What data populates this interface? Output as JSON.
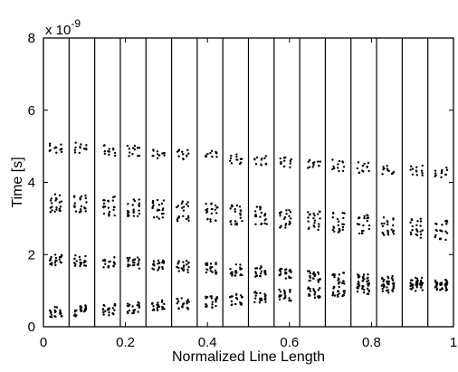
{
  "chart_data": {
    "type": "scatter",
    "title": "",
    "xlabel": "Normalized Line Length",
    "ylabel": "Time [s]",
    "y_multiplier": "x 10",
    "y_multiplier_exponent": "-9",
    "xlim": [
      0,
      1
    ],
    "ylim": [
      0,
      8
    ],
    "xticks": [
      0,
      0.2,
      0.4,
      0.6,
      0.8,
      1
    ],
    "xtick_labels": [
      "0",
      "0.2",
      "0.4",
      "0.6",
      "0.8",
      "1"
    ],
    "yticks": [
      0,
      2,
      4,
      6,
      8
    ],
    "ytick_labels": [
      "0",
      "2",
      "4",
      "6",
      "8"
    ],
    "grid": false,
    "legend": "none",
    "separator_lines_x": [
      0.0625,
      0.125,
      0.1875,
      0.25,
      0.3125,
      0.375,
      0.4375,
      0.5,
      0.5625,
      0.625,
      0.6875,
      0.75,
      0.8125,
      0.875,
      0.9375
    ],
    "series": [
      {
        "values": [
          {
            "group_x": 0.03,
            "band": 1,
            "y": 0.4
          },
          {
            "group_x": 0.03,
            "band": 2,
            "y": 1.85
          },
          {
            "group_x": 0.03,
            "band": 3,
            "y": 3.45
          },
          {
            "group_x": 0.03,
            "band": 4,
            "y": 4.98
          },
          {
            "group_x": 0.09,
            "band": 1,
            "y": 0.44
          },
          {
            "group_x": 0.09,
            "band": 2,
            "y": 1.83
          },
          {
            "group_x": 0.09,
            "band": 3,
            "y": 3.4
          },
          {
            "group_x": 0.09,
            "band": 4,
            "y": 4.95
          },
          {
            "group_x": 0.16,
            "band": 1,
            "y": 0.48
          },
          {
            "group_x": 0.16,
            "band": 2,
            "y": 1.8
          },
          {
            "group_x": 0.16,
            "band": 3,
            "y": 3.35
          },
          {
            "group_x": 0.16,
            "band": 4,
            "y": 4.9
          },
          {
            "group_x": 0.22,
            "band": 1,
            "y": 0.53
          },
          {
            "group_x": 0.22,
            "band": 2,
            "y": 1.76
          },
          {
            "group_x": 0.22,
            "band": 3,
            "y": 3.3
          },
          {
            "group_x": 0.22,
            "band": 4,
            "y": 4.86
          },
          {
            "group_x": 0.28,
            "band": 1,
            "y": 0.58
          },
          {
            "group_x": 0.28,
            "band": 2,
            "y": 1.72
          },
          {
            "group_x": 0.28,
            "band": 3,
            "y": 3.25
          },
          {
            "group_x": 0.28,
            "band": 4,
            "y": 4.82
          },
          {
            "group_x": 0.34,
            "band": 1,
            "y": 0.64
          },
          {
            "group_x": 0.34,
            "band": 2,
            "y": 1.67
          },
          {
            "group_x": 0.34,
            "band": 3,
            "y": 3.2
          },
          {
            "group_x": 0.34,
            "band": 4,
            "y": 4.77
          },
          {
            "group_x": 0.41,
            "band": 1,
            "y": 0.69
          },
          {
            "group_x": 0.41,
            "band": 2,
            "y": 1.62
          },
          {
            "group_x": 0.41,
            "band": 3,
            "y": 3.15
          },
          {
            "group_x": 0.41,
            "band": 4,
            "y": 4.72
          },
          {
            "group_x": 0.47,
            "band": 1,
            "y": 0.75
          },
          {
            "group_x": 0.47,
            "band": 2,
            "y": 1.57
          },
          {
            "group_x": 0.47,
            "band": 3,
            "y": 3.1
          },
          {
            "group_x": 0.47,
            "band": 4,
            "y": 4.67
          },
          {
            "group_x": 0.53,
            "band": 1,
            "y": 0.81
          },
          {
            "group_x": 0.53,
            "band": 2,
            "y": 1.52
          },
          {
            "group_x": 0.53,
            "band": 3,
            "y": 3.05
          },
          {
            "group_x": 0.53,
            "band": 4,
            "y": 4.62
          },
          {
            "group_x": 0.59,
            "band": 1,
            "y": 0.87
          },
          {
            "group_x": 0.59,
            "band": 2,
            "y": 1.46
          },
          {
            "group_x": 0.59,
            "band": 3,
            "y": 3.0
          },
          {
            "group_x": 0.59,
            "band": 4,
            "y": 4.57
          },
          {
            "group_x": 0.66,
            "band": 1,
            "y": 0.93
          },
          {
            "group_x": 0.66,
            "band": 2,
            "y": 1.4
          },
          {
            "group_x": 0.66,
            "band": 3,
            "y": 2.94
          },
          {
            "group_x": 0.66,
            "band": 4,
            "y": 4.52
          },
          {
            "group_x": 0.72,
            "band": 1,
            "y": 0.99
          },
          {
            "group_x": 0.72,
            "band": 2,
            "y": 1.35
          },
          {
            "group_x": 0.72,
            "band": 3,
            "y": 2.89
          },
          {
            "group_x": 0.72,
            "band": 4,
            "y": 4.47
          },
          {
            "group_x": 0.78,
            "band": 1,
            "y": 1.05
          },
          {
            "group_x": 0.78,
            "band": 2,
            "y": 1.3
          },
          {
            "group_x": 0.78,
            "band": 3,
            "y": 2.84
          },
          {
            "group_x": 0.78,
            "band": 4,
            "y": 4.42
          },
          {
            "group_x": 0.84,
            "band": 1,
            "y": 1.1
          },
          {
            "group_x": 0.84,
            "band": 2,
            "y": 1.25
          },
          {
            "group_x": 0.84,
            "band": 3,
            "y": 2.78
          },
          {
            "group_x": 0.84,
            "band": 4,
            "y": 4.37
          },
          {
            "group_x": 0.91,
            "band": 1,
            "y": 1.14
          },
          {
            "group_x": 0.91,
            "band": 2,
            "y": 1.21
          },
          {
            "group_x": 0.91,
            "band": 3,
            "y": 2.73
          },
          {
            "group_x": 0.91,
            "band": 4,
            "y": 4.32
          },
          {
            "group_x": 0.97,
            "band": 1,
            "y": 1.16
          },
          {
            "group_x": 0.97,
            "band": 2,
            "y": 1.16
          },
          {
            "group_x": 0.97,
            "band": 3,
            "y": 2.67
          },
          {
            "group_x": 0.97,
            "band": 4,
            "y": 4.28
          }
        ]
      }
    ]
  }
}
